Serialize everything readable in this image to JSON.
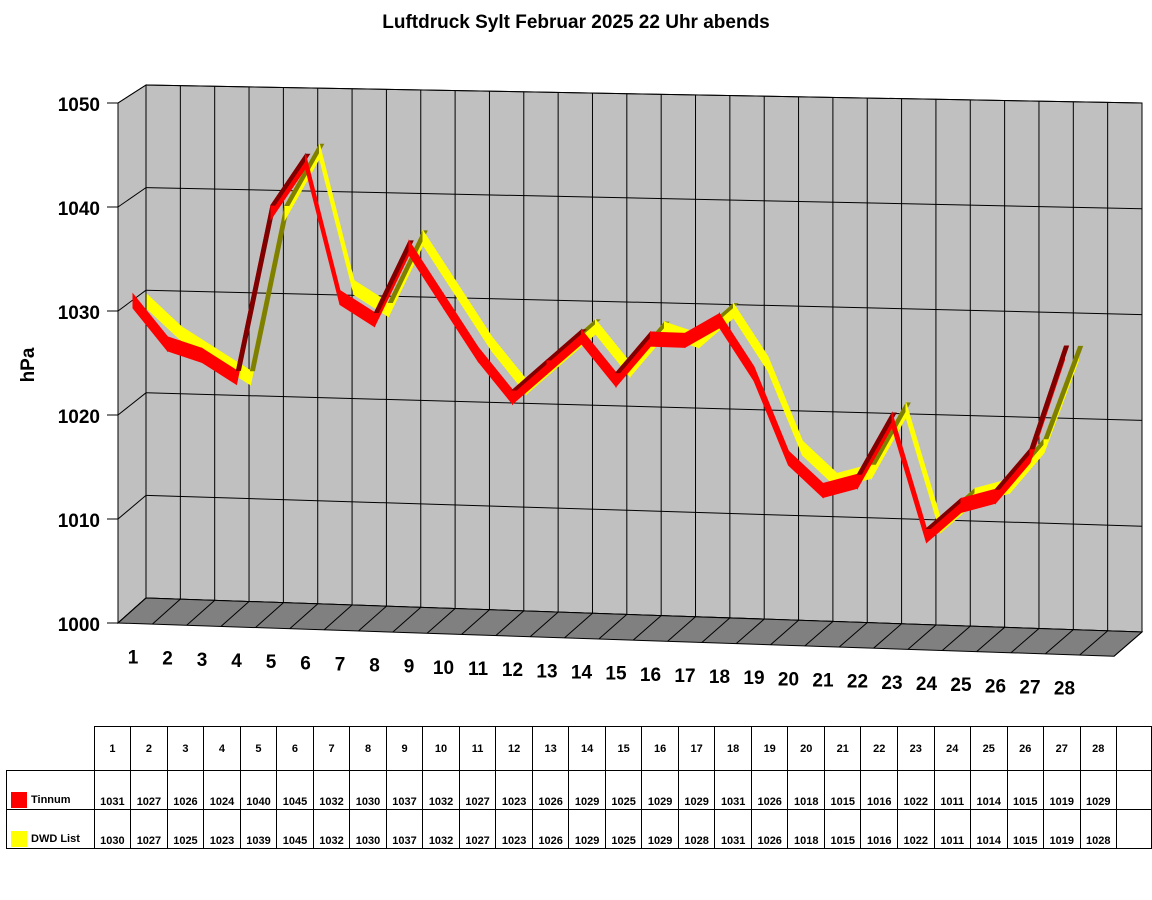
{
  "chart_data": {
    "type": "area",
    "title": "Luftdruck Sylt Februar 2025 22 Uhr abends",
    "ylabel": "hPa",
    "ylim": [
      1000,
      1050
    ],
    "yticks": [
      "1000",
      "1010",
      "1020",
      "1030",
      "1040",
      "1050"
    ],
    "categories": [
      "1",
      "2",
      "3",
      "4",
      "5",
      "6",
      "7",
      "8",
      "9",
      "10",
      "11",
      "12",
      "13",
      "14",
      "15",
      "16",
      "17",
      "18",
      "19",
      "20",
      "21",
      "22",
      "23",
      "24",
      "25",
      "26",
      "27",
      "28"
    ],
    "grid": true,
    "series": [
      {
        "name": "Tinnum",
        "color": "#ff0000",
        "values": [
          1031,
          1027,
          1026,
          1024,
          1040,
          1045,
          1032,
          1030,
          1037,
          1032,
          1027,
          1023,
          1026,
          1029,
          1025,
          1029,
          1029,
          1031,
          1026,
          1018,
          1015,
          1016,
          1022,
          1011,
          1014,
          1015,
          1019,
          1029
        ]
      },
      {
        "name": "DWD List",
        "color": "#ffff00",
        "values": [
          1030,
          1027,
          1025,
          1023,
          1039,
          1045,
          1032,
          1030,
          1037,
          1032,
          1027,
          1023,
          1026,
          1029,
          1025,
          1029,
          1028,
          1031,
          1026,
          1018,
          1015,
          1016,
          1022,
          1011,
          1014,
          1015,
          1019,
          1028
        ]
      }
    ]
  }
}
